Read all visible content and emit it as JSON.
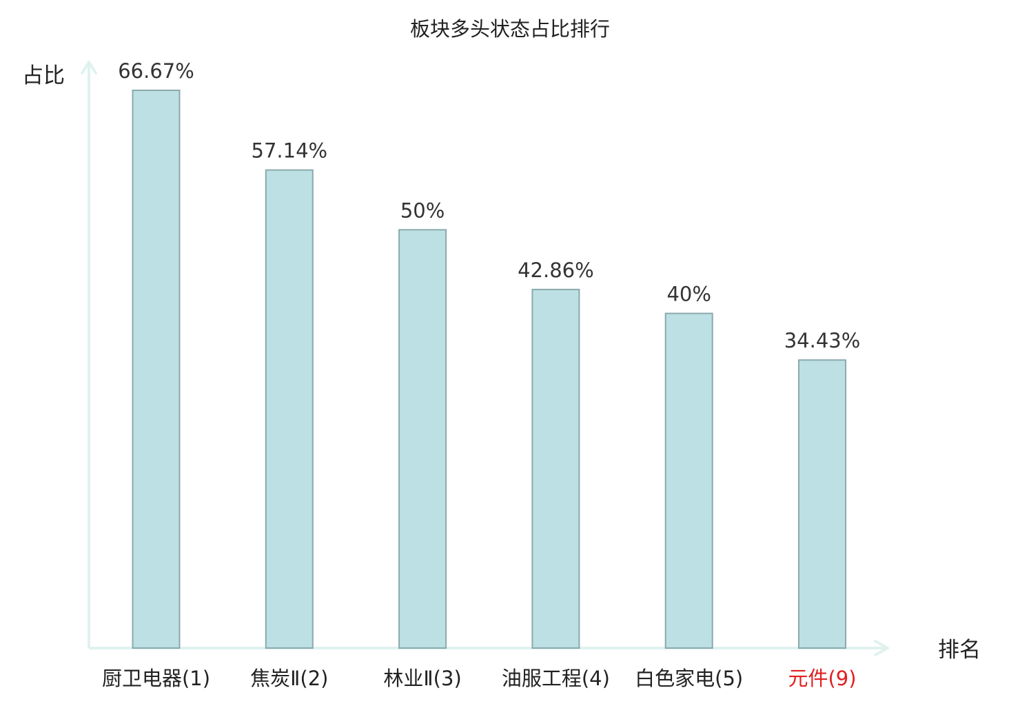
{
  "chart_data": {
    "type": "bar",
    "title": "板块多头状态占比排行",
    "xlabel": "排名",
    "ylabel": "占比",
    "categories": [
      "厨卫电器(1)",
      "焦炭Ⅱ(2)",
      "林业Ⅱ(3)",
      "油服工程(4)",
      "白色家电(5)",
      "元件(9)"
    ],
    "values": [
      66.67,
      57.14,
      50,
      42.86,
      40,
      34.43
    ],
    "value_labels": [
      "66.67%",
      "57.14%",
      "50%",
      "42.86%",
      "40%",
      "34.43%"
    ],
    "highlight_index": 5,
    "ylim": [
      0,
      66.67
    ],
    "grid": false,
    "legend": "none",
    "colors": {
      "bar_fill": "#bce0e3",
      "bar_stroke": "#8aa9ad",
      "axis": "#dff2ef",
      "text": "#333333",
      "label": "#222222",
      "highlight": "#e02020"
    }
  }
}
